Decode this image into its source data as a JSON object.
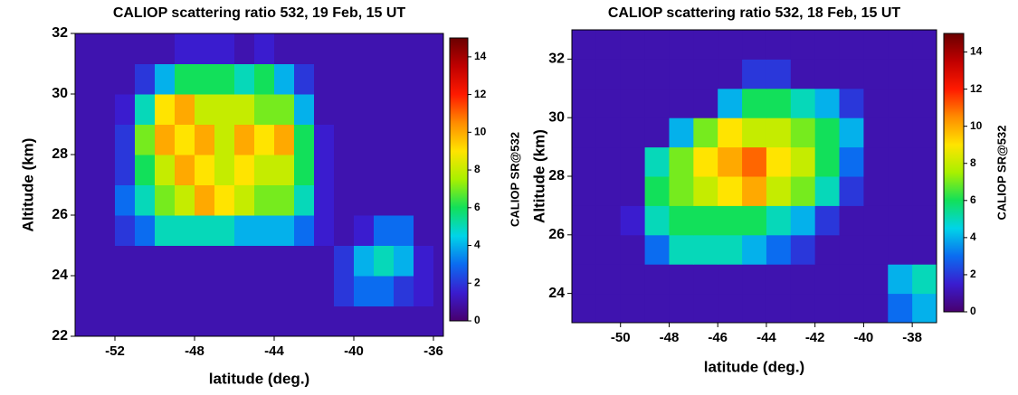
{
  "chart_data": [
    {
      "type": "heatmap",
      "title": "CALIOP scattering ratio 532, 19 Feb, 15 UT",
      "x_label": "latitude (deg.)",
      "y_label": "Altitude (km)",
      "colorbar_label": "CALIOP SR@532",
      "xlim": [
        -54,
        -35.5
      ],
      "xticks": [
        -52,
        -48,
        -44,
        -40,
        -36
      ],
      "ylim": [
        22,
        32
      ],
      "yticks": [
        22,
        24,
        26,
        28,
        30,
        32
      ],
      "clim": [
        0,
        15
      ],
      "cticks": [
        0,
        2,
        4,
        6,
        8,
        10,
        12,
        14
      ],
      "colormap": [
        "#48006e",
        "#3a1ccf",
        "#0b6cf0",
        "#00d4e8",
        "#12e05a",
        "#a8f000",
        "#ffe400",
        "#ff8c00",
        "#ff1a00",
        "#c00000",
        "#6a0000"
      ],
      "x": [
        -53.5,
        -52.5,
        -51.5,
        -50.5,
        -49.5,
        -48.5,
        -47.5,
        -46.5,
        -45.5,
        -44.5,
        -43.5,
        -42.5,
        -41.5,
        -40.5,
        -39.5,
        -38.5,
        -37.5,
        -36.5,
        -35.5
      ],
      "y": [
        22.5,
        23.5,
        24.5,
        25.5,
        26.5,
        27.5,
        28.5,
        29.5,
        30.5,
        31.5
      ],
      "z": [
        [
          1,
          1,
          1,
          1,
          1,
          1,
          1,
          1,
          1,
          1,
          1,
          1,
          1,
          1,
          1,
          1,
          1,
          1,
          1
        ],
        [
          1,
          1,
          1,
          1,
          1,
          1,
          1,
          1,
          1,
          1,
          1,
          1,
          1,
          2,
          3,
          3,
          2,
          1.5,
          1
        ],
        [
          1,
          1,
          1,
          1,
          1,
          1,
          1,
          1,
          1,
          1,
          1,
          1,
          1,
          2,
          4,
          5,
          4,
          1.5,
          1
        ],
        [
          1,
          1,
          2,
          3,
          5,
          5,
          5,
          5,
          4,
          4,
          4,
          3,
          1.5,
          1,
          1.5,
          3,
          3,
          1,
          1
        ],
        [
          1,
          1,
          3,
          5,
          7,
          8,
          10,
          9,
          8,
          7,
          7,
          5,
          1.5,
          1,
          1,
          1,
          1,
          1,
          1
        ],
        [
          1,
          1,
          2,
          6,
          8,
          10,
          9,
          8,
          9,
          8,
          8,
          6,
          1.5,
          1,
          1,
          1,
          1,
          1,
          1
        ],
        [
          1,
          1,
          2,
          7,
          10,
          9,
          10,
          8,
          10,
          9,
          10,
          6,
          1.5,
          1,
          1,
          1,
          1,
          1,
          1
        ],
        [
          1,
          1,
          1.5,
          5,
          9,
          10,
          8,
          8,
          8,
          7,
          7,
          4,
          1,
          1,
          1,
          1,
          1,
          1,
          1
        ],
        [
          1,
          1,
          1,
          2,
          4,
          6,
          6,
          6,
          5,
          6,
          4,
          2,
          1,
          1,
          1,
          1,
          1,
          1,
          1
        ],
        [
          1,
          1,
          1,
          1,
          1,
          1.5,
          1.5,
          1.5,
          1,
          1.5,
          1,
          1,
          1,
          1,
          1,
          1,
          1,
          1,
          1
        ]
      ]
    },
    {
      "type": "heatmap",
      "title": "CALIOP scattering ratio 532, 18 Feb, 15 UT",
      "x_label": "latitude (deg.)",
      "y_label": "Altitude (km)",
      "colorbar_label": "CALIOP SR@532",
      "xlim": [
        -52,
        -37
      ],
      "xticks": [
        -50,
        -48,
        -46,
        -44,
        -42,
        -40,
        -38
      ],
      "ylim": [
        23,
        33
      ],
      "yticks": [
        24,
        26,
        28,
        30,
        32
      ],
      "clim": [
        0,
        15
      ],
      "cticks": [
        0,
        2,
        4,
        6,
        8,
        10,
        12,
        14
      ],
      "colormap": [
        "#48006e",
        "#3a1ccf",
        "#0b6cf0",
        "#00d4e8",
        "#12e05a",
        "#a8f000",
        "#ffe400",
        "#ff8c00",
        "#ff1a00",
        "#c00000",
        "#6a0000"
      ],
      "x": [
        -51.5,
        -50.5,
        -49.5,
        -48.5,
        -47.5,
        -46.5,
        -45.5,
        -44.5,
        -43.5,
        -42.5,
        -41.5,
        -40.5,
        -39.5,
        -38.5,
        -37.5
      ],
      "y": [
        23.5,
        24.5,
        25.5,
        26.5,
        27.5,
        28.5,
        29.5,
        30.5,
        31.5,
        32.5
      ],
      "z": [
        [
          1,
          1,
          1,
          1,
          1,
          1,
          1,
          1,
          1,
          1,
          1,
          1,
          1,
          3,
          4
        ],
        [
          1,
          1,
          1,
          1,
          1,
          1,
          1,
          1,
          1,
          1,
          1,
          1,
          1,
          4,
          5
        ],
        [
          1,
          1,
          1,
          3,
          5,
          5,
          5,
          4,
          3,
          2,
          1,
          1,
          1,
          1,
          1
        ],
        [
          1,
          1,
          1.5,
          5,
          6,
          6,
          6,
          6,
          5,
          4,
          2,
          1,
          1,
          1,
          1
        ],
        [
          1,
          1,
          1,
          6,
          7,
          8,
          9,
          10,
          8,
          7,
          5,
          2,
          1,
          1,
          1
        ],
        [
          1,
          1,
          1,
          5,
          7,
          9,
          10,
          11,
          9,
          8,
          6,
          3,
          1,
          1,
          1
        ],
        [
          1,
          1,
          1,
          1,
          4,
          7,
          9,
          8,
          8,
          7,
          6,
          4,
          1,
          1,
          1
        ],
        [
          1,
          1,
          1,
          1,
          1,
          1,
          4,
          6,
          6,
          5,
          4,
          2,
          1,
          1,
          1
        ],
        [
          1,
          1,
          1,
          1,
          1,
          1,
          1,
          2,
          2,
          1,
          1,
          1,
          1,
          1,
          1
        ],
        [
          1,
          1,
          1,
          1,
          1,
          1,
          1,
          1,
          1,
          1,
          1,
          1,
          1,
          1,
          1
        ]
      ]
    }
  ]
}
